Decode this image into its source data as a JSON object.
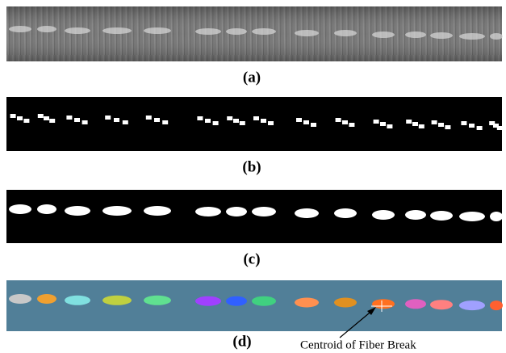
{
  "figure": {
    "panels": [
      {
        "label": "(a)"
      },
      {
        "label": "(b)"
      },
      {
        "label": "(c)"
      },
      {
        "label": "(d)"
      }
    ],
    "annotation": "Centroid of Fiber Break"
  }
}
